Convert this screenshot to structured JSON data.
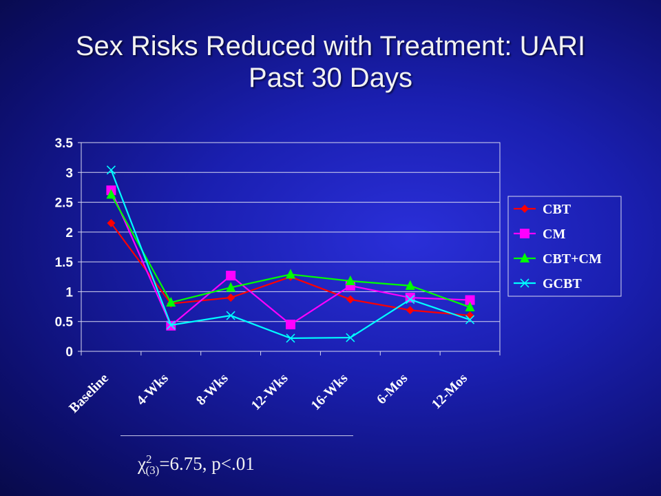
{
  "slide": {
    "title_line1": "Sex Risks Reduced with Treatment: UARI",
    "title_line2": "Past 30 Days",
    "annotation": {
      "chi_symbol": "χ",
      "superscript": "2",
      "subscript": "(3)",
      "rest": "=6.75, p<.01"
    }
  },
  "colors": {
    "background": "#1a1fb0",
    "plot_area": "#ffffff",
    "CBT": "#ff0000",
    "CM": "#ff00ff",
    "CBT+CM": "#00ff00",
    "GCBT": "#00ffff"
  },
  "chart_data": {
    "type": "line",
    "title": "",
    "xlabel": "",
    "ylabel": "",
    "categories": [
      "Baseline",
      "4-Wks",
      "8-Wks",
      "12-Wks",
      "16-Wks",
      "6-Mos",
      "12-Mos"
    ],
    "ylim": [
      0,
      3.5
    ],
    "yticks": [
      0,
      0.5,
      1,
      1.5,
      2,
      2.5,
      3,
      3.5
    ],
    "ytick_labels": [
      "0",
      "0.5",
      "1",
      "1.5",
      "2",
      "2.5",
      "3",
      "3.5"
    ],
    "grid": true,
    "legend_position": "right",
    "series": [
      {
        "name": "CBT",
        "marker": "diamond",
        "color": "#ff0000",
        "values": [
          2.15,
          0.8,
          0.9,
          1.25,
          0.87,
          0.69,
          0.6
        ]
      },
      {
        "name": "CM",
        "marker": "square",
        "color": "#ff00ff",
        "values": [
          2.7,
          0.43,
          1.27,
          0.45,
          1.1,
          0.9,
          0.86
        ]
      },
      {
        "name": "CBT+CM",
        "marker": "triangle",
        "color": "#00ff00",
        "values": [
          2.63,
          0.82,
          1.07,
          1.29,
          1.18,
          1.1,
          0.74
        ]
      },
      {
        "name": "GCBT",
        "marker": "x",
        "color": "#00ffff",
        "values": [
          3.04,
          0.44,
          0.6,
          0.22,
          0.23,
          0.87,
          0.53
        ]
      }
    ]
  }
}
